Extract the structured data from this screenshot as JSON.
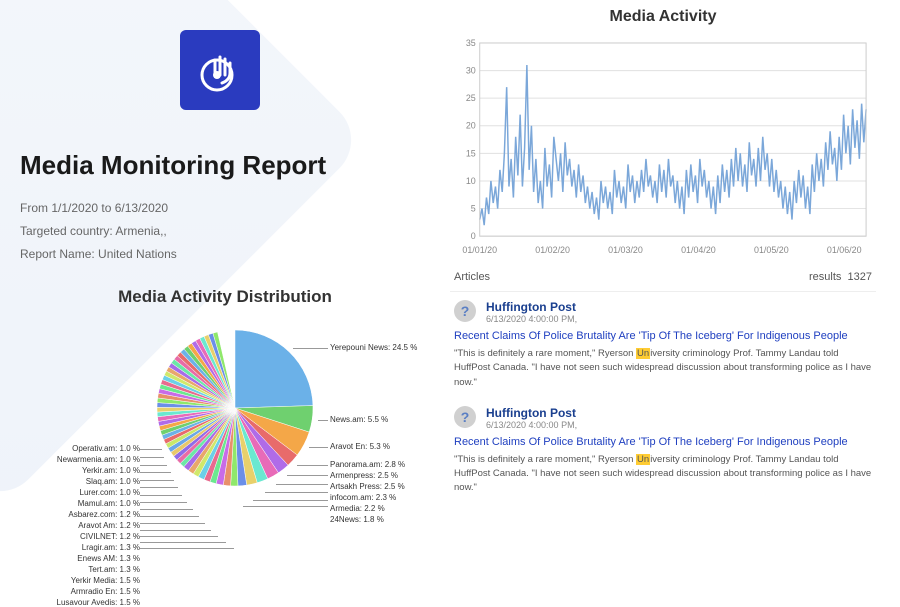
{
  "logo": {
    "bg": "#2a3bbf",
    "fg": "#ffffff"
  },
  "report": {
    "title": "Media Monitoring Report",
    "date_range": "From 1/1/2020 to 6/13/2020",
    "country": "Targeted country: Armenia,,",
    "name": "Report Name: United Nations"
  },
  "distribution": {
    "title": "Media Activity Distribution",
    "slices": [
      {
        "label": "Yerepouni News: 24.5 %",
        "value": 24.5,
        "color": "#6bb1e8"
      },
      {
        "label": "News.am: 5.5 %",
        "value": 5.5,
        "color": "#6fd06f"
      },
      {
        "label": "Aravot En: 5.3 %",
        "value": 5.3,
        "color": "#f4a748"
      },
      {
        "label": "Panorama.am: 2.8 %",
        "value": 2.8,
        "color": "#e86b6b"
      },
      {
        "label": "Armenpress: 2.5 %",
        "value": 2.5,
        "color": "#b06be8"
      },
      {
        "label": "Artsakh Press: 2.5 %",
        "value": 2.5,
        "color": "#e86bb8"
      },
      {
        "label": "infocom.am: 2.3 %",
        "value": 2.3,
        "color": "#6be8d0"
      },
      {
        "label": "Armedia: 2.2 %",
        "value": 2.2,
        "color": "#e8d06b"
      },
      {
        "label": "24News: 1.8 %",
        "value": 1.8,
        "color": "#6b8fe8"
      },
      {
        "label": "Lusavour Avedis: 1.5 %",
        "value": 1.5,
        "color": "#8fe86b"
      },
      {
        "label": "Armradio En: 1.5 %",
        "value": 1.5,
        "color": "#e88f6b"
      },
      {
        "label": "Yerkir Media: 1.5 %",
        "value": 1.5,
        "color": "#c86be8"
      },
      {
        "label": "Tert.am: 1.3 %",
        "value": 1.3,
        "color": "#6be88f"
      },
      {
        "label": "Enews AM: 1.3 %",
        "value": 1.3,
        "color": "#e86b8f"
      },
      {
        "label": "Lragir.am: 1.3 %",
        "value": 1.3,
        "color": "#6bd0e8"
      },
      {
        "label": "CIVILNET: 1.2 %",
        "value": 1.2,
        "color": "#d0e86b"
      },
      {
        "label": "Aravot Am: 1.2 %",
        "value": 1.2,
        "color": "#e8a76b"
      },
      {
        "label": "Asbarez.com: 1.2 %",
        "value": 1.2,
        "color": "#a76be8"
      },
      {
        "label": "Mamul.am: 1.0 %",
        "value": 1.0,
        "color": "#6be8a7"
      },
      {
        "label": "Lurer.com: 1.0 %",
        "value": 1.0,
        "color": "#e86ba7"
      },
      {
        "label": "Slaq.am: 1.0 %",
        "value": 1.0,
        "color": "#8f6be8"
      },
      {
        "label": "Yerkir.am: 1.0 %",
        "value": 1.0,
        "color": "#e8c86b"
      },
      {
        "label": "Newarmenia.am: 1.0 %",
        "value": 1.0,
        "color": "#6ba7e8"
      },
      {
        "label": "Operativ.am: 1.0 %",
        "value": 1.0,
        "color": "#c8e86b"
      }
    ],
    "rest": 29.0,
    "rest_thin_count": 30
  },
  "activity": {
    "title": "Media Activity",
    "ylim": [
      0,
      35
    ],
    "ytick_step": 5,
    "x_ticks": [
      "01/01/20",
      "01/02/20",
      "01/03/20",
      "01/04/20",
      "01/05/20",
      "01/06/20"
    ],
    "line_color": "#7ba7d9",
    "grid_color": "#e0e0e0",
    "values": [
      3,
      5,
      2,
      7,
      4,
      10,
      6,
      9,
      5,
      12,
      8,
      15,
      27,
      9,
      14,
      7,
      18,
      11,
      22,
      9,
      16,
      31,
      12,
      20,
      8,
      14,
      6,
      10,
      5,
      16,
      9,
      13,
      7,
      18,
      14,
      10,
      15,
      8,
      17,
      11,
      14,
      9,
      12,
      7,
      13,
      8,
      11,
      6,
      9,
      5,
      8,
      4,
      7,
      3,
      10,
      6,
      9,
      5,
      8,
      4,
      12,
      7,
      10,
      6,
      9,
      5,
      13,
      8,
      11,
      6,
      10,
      7,
      12,
      8,
      14,
      9,
      11,
      7,
      10,
      6,
      13,
      8,
      12,
      7,
      14,
      9,
      11,
      6,
      10,
      5,
      9,
      4,
      12,
      7,
      13,
      8,
      11,
      6,
      14,
      9,
      12,
      7,
      10,
      5,
      9,
      4,
      11,
      6,
      13,
      8,
      12,
      7,
      14,
      9,
      16,
      10,
      15,
      9,
      13,
      8,
      17,
      11,
      14,
      9,
      16,
      10,
      18,
      12,
      15,
      9,
      14,
      8,
      12,
      7,
      10,
      5,
      9,
      4,
      8,
      3,
      10,
      6,
      12,
      7,
      11,
      5,
      9,
      4,
      13,
      8,
      15,
      10,
      14,
      9,
      17,
      12,
      19,
      13,
      16,
      10,
      18,
      12,
      22,
      15,
      20,
      13,
      23,
      16,
      21,
      14,
      24,
      17,
      23
    ]
  },
  "articles": {
    "header_left": "Articles",
    "header_right_label": "results",
    "header_right_count": "1327",
    "items": [
      {
        "source": "Huffington Post",
        "date": "6/13/2020 4:00:00 PM,",
        "title": "Recent Claims Of Police Brutality Are 'Tip Of The Iceberg' For Indigenous People",
        "body_pre": "\"This is definitely a rare moment,\" Ryerson ",
        "body_hl": "Un",
        "body_post": "iversity criminology Prof. Tammy Landau told HuffPost Canada. \"I have not seen such widespread discussion about transforming police as I have now.\""
      },
      {
        "source": "Huffington Post",
        "date": "6/13/2020 4:00:00 PM,",
        "title": "Recent Claims Of Police Brutality Are 'Tip Of The Iceberg' For Indigenous People",
        "body_pre": "\"This is definitely a rare moment,\" Ryerson ",
        "body_hl": "Un",
        "body_post": "iversity criminology Prof. Tammy Landau told HuffPost Canada. \"I have not seen such widespread discussion about transforming police as I have now.\""
      }
    ]
  }
}
